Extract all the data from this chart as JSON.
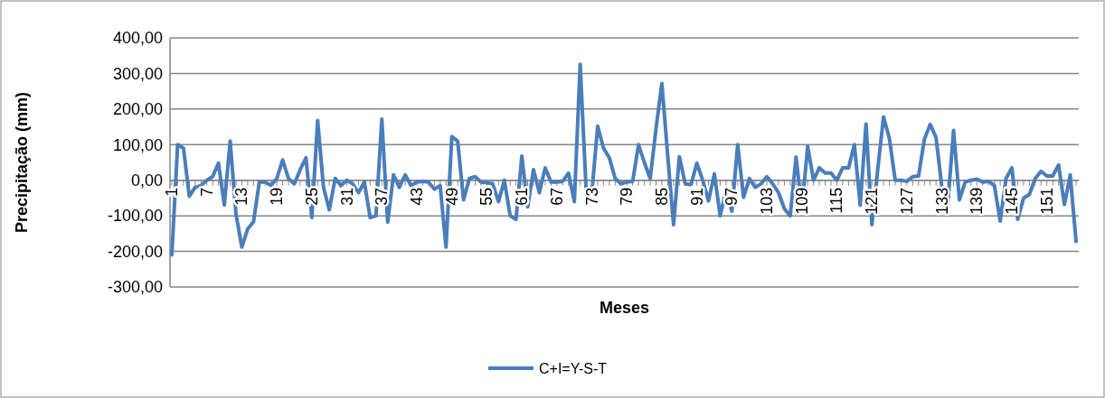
{
  "chart_data": {
    "type": "line",
    "xlabel": "Meses",
    "ylabel": "Precipitação (mm)",
    "categories": [
      "1",
      null,
      null,
      null,
      null,
      null,
      "7",
      null,
      null,
      null,
      null,
      null,
      "13",
      null,
      null,
      null,
      null,
      null,
      "19",
      null,
      null,
      null,
      null,
      null,
      "25",
      null,
      null,
      null,
      null,
      null,
      "31",
      null,
      null,
      null,
      null,
      null,
      "37",
      null,
      null,
      null,
      null,
      null,
      "43",
      null,
      null,
      null,
      null,
      null,
      "49",
      null,
      null,
      null,
      null,
      null,
      "55",
      null,
      null,
      null,
      null,
      null,
      "61",
      null,
      null,
      null,
      null,
      null,
      "67",
      null,
      null,
      null,
      null,
      null,
      "73",
      null,
      null,
      null,
      null,
      null,
      "79",
      null,
      null,
      null,
      null,
      null,
      "85",
      null,
      null,
      null,
      null,
      null,
      "91",
      null,
      null,
      null,
      null,
      null,
      "97",
      null,
      null,
      null,
      null,
      null,
      "103",
      null,
      null,
      null,
      null,
      null,
      "109",
      null,
      null,
      null,
      null,
      null,
      "115",
      null,
      null,
      null,
      null,
      null,
      "121",
      null,
      null,
      null,
      null,
      null,
      "127",
      null,
      null,
      null,
      null,
      null,
      "133",
      null,
      null,
      null,
      null,
      null,
      "139",
      null,
      null,
      null,
      null,
      null,
      "145",
      null,
      null,
      null,
      null,
      null,
      "151",
      null,
      null,
      null,
      null,
      null
    ],
    "series": [
      {
        "name": "C+I=Y-S-T",
        "color": "#4a7ebb",
        "values": [
          -210,
          100,
          90,
          -45,
          -20,
          -15,
          0,
          10,
          48,
          -70,
          110,
          -95,
          -188,
          -137,
          -117,
          -5,
          -5,
          -15,
          5,
          57,
          5,
          -10,
          30,
          63,
          -105,
          168,
          -20,
          -83,
          5,
          -15,
          0,
          -10,
          -35,
          -5,
          -105,
          -100,
          172,
          -118,
          15,
          -20,
          15,
          -15,
          -5,
          -3,
          -5,
          -25,
          -15,
          -188,
          123,
          110,
          -55,
          5,
          10,
          -5,
          -7,
          -10,
          -60,
          0,
          -100,
          -110,
          68,
          -75,
          30,
          -35,
          35,
          -5,
          -5,
          -3,
          20,
          -60,
          326,
          -20,
          -35,
          152,
          90,
          63,
          5,
          -10,
          -5,
          -3,
          100,
          50,
          5,
          145,
          272,
          70,
          -125,
          66,
          -10,
          -12,
          48,
          0,
          -58,
          18,
          -100,
          -28,
          -87,
          100,
          -48,
          5,
          -20,
          -10,
          10,
          -10,
          -35,
          -80,
          -100,
          65,
          -80,
          95,
          0,
          35,
          20,
          20,
          0,
          35,
          35,
          100,
          -70,
          158,
          -125,
          30,
          178,
          117,
          0,
          0,
          -3,
          10,
          12,
          115,
          157,
          120,
          -20,
          -70,
          140,
          -55,
          -5,
          0,
          3,
          -5,
          -3,
          -15,
          -115,
          5,
          35,
          -110,
          -50,
          -40,
          5,
          25,
          12,
          12,
          43,
          -68,
          15,
          -172
        ]
      }
    ],
    "ylim": [
      -300,
      400
    ],
    "yticks": [
      {
        "value": -300,
        "label": "-300,00"
      },
      {
        "value": -200,
        "label": "-200,00"
      },
      {
        "value": -100,
        "label": "-100,00"
      },
      {
        "value": 0,
        "label": "0,00"
      },
      {
        "value": 100,
        "label": "100,00"
      },
      {
        "value": 200,
        "label": "200,00"
      },
      {
        "value": 300,
        "label": "300,00"
      },
      {
        "value": 400,
        "label": "400,00"
      }
    ],
    "grid": "y",
    "legend": "bottom",
    "marker": "none",
    "line_style": "solid"
  }
}
